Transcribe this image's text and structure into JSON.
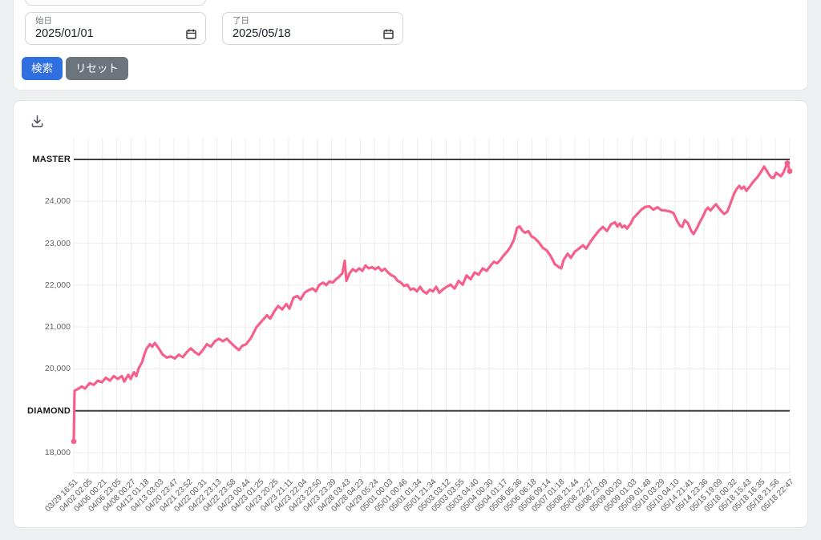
{
  "page": {
    "background": "#eef0f2",
    "card_background": "#ffffff",
    "card_border": "#e4e6ea"
  },
  "filter": {
    "start_date": {
      "label": "始日",
      "value": "2025/01/01"
    },
    "end_date": {
      "label": "了日",
      "value": "2025/05/18"
    },
    "search_label": "検索",
    "reset_label": "リセット",
    "search_color": "#2f6fe0",
    "reset_color": "#6c757d"
  },
  "icons": {
    "download": "tray-arrow-down",
    "calendar": "calendar-outline"
  },
  "chart_data": {
    "type": "line",
    "title": "",
    "line_color": "#f4608a",
    "threshold_color": "#3a3f44",
    "grid_color": "#ececec",
    "legend": "none",
    "y_range": [
      17523,
      25516
    ],
    "y_ticks": [
      {
        "label": "MASTER",
        "value": 25000,
        "emph": true
      },
      {
        "label": "24,000",
        "value": 24000
      },
      {
        "label": "23,000",
        "value": 23000
      },
      {
        "label": "22,000",
        "value": 22000
      },
      {
        "label": "21,000",
        "value": 21000
      },
      {
        "label": "20,000",
        "value": 20000
      },
      {
        "label": "DIAMOND",
        "value": 19000,
        "emph": true
      },
      {
        "label": "18,000",
        "value": 18000
      }
    ],
    "x_ticks": [
      "03/29 16:51",
      "04/02 02:05",
      "04/06 00:21",
      "04/06 23:05",
      "04/08 00:27",
      "04/12 01:18",
      "04/13 03:03",
      "04/20 23:47",
      "04/21 23:52",
      "04/22 00:31",
      "04/22 23:13",
      "04/22 23:58",
      "04/23 00:44",
      "04/23 01:25",
      "04/23 20:25",
      "04/23 21:11",
      "04/23 22:04",
      "04/23 22:50",
      "04/23 23:39",
      "04/28 03:43",
      "04/28 04:23",
      "04/29 05:24",
      "05/01 00:03",
      "05/01 00:46",
      "05/01 01:34",
      "05/01 21:34",
      "05/03 03:12",
      "05/03 03:55",
      "05/03 04:40",
      "05/04 00:30",
      "05/04 01:17",
      "05/06 05:36",
      "05/06 06:18",
      "05/06 09:14",
      "05/07 01:18",
      "05/08 21:44",
      "05/08 22:27",
      "05/08 23:09",
      "05/09 00:20",
      "05/09 01:03",
      "05/09 01:48",
      "05/10 03:29",
      "05/10 04:10",
      "05/14 21:41",
      "05/14 23:36",
      "05/15 19:09",
      "05/18 00:32",
      "05/18 15:43",
      "05/18 16:35",
      "05/18 21:56",
      "05/18 22:47"
    ],
    "points": [
      [
        0,
        18270
      ],
      [
        1,
        19480
      ],
      [
        5,
        19520
      ],
      [
        10,
        19580
      ],
      [
        14,
        19530
      ],
      [
        20,
        19660
      ],
      [
        25,
        19620
      ],
      [
        30,
        19720
      ],
      [
        35,
        19680
      ],
      [
        40,
        19790
      ],
      [
        45,
        19720
      ],
      [
        50,
        19830
      ],
      [
        55,
        19760
      ],
      [
        60,
        19830
      ],
      [
        63,
        19700
      ],
      [
        68,
        19860
      ],
      [
        71,
        19760
      ],
      [
        75,
        19920
      ],
      [
        78,
        19830
      ],
      [
        81,
        20020
      ],
      [
        85,
        20150
      ],
      [
        88,
        20340
      ],
      [
        91,
        20490
      ],
      [
        95,
        20590
      ],
      [
        98,
        20530
      ],
      [
        101,
        20620
      ],
      [
        106,
        20490
      ],
      [
        111,
        20340
      ],
      [
        116,
        20270
      ],
      [
        121,
        20300
      ],
      [
        126,
        20250
      ],
      [
        131,
        20340
      ],
      [
        136,
        20280
      ],
      [
        141,
        20400
      ],
      [
        146,
        20490
      ],
      [
        151,
        20400
      ],
      [
        156,
        20340
      ],
      [
        161,
        20450
      ],
      [
        166,
        20590
      ],
      [
        171,
        20530
      ],
      [
        176,
        20660
      ],
      [
        181,
        20720
      ],
      [
        186,
        20660
      ],
      [
        191,
        20720
      ],
      [
        196,
        20620
      ],
      [
        201,
        20530
      ],
      [
        206,
        20450
      ],
      [
        210,
        20550
      ],
      [
        215,
        20590
      ],
      [
        221,
        20740
      ],
      [
        228,
        21000
      ],
      [
        235,
        21150
      ],
      [
        241,
        21280
      ],
      [
        245,
        21200
      ],
      [
        251,
        21400
      ],
      [
        255,
        21500
      ],
      [
        260,
        21420
      ],
      [
        265,
        21550
      ],
      [
        269,
        21440
      ],
      [
        274,
        21700
      ],
      [
        279,
        21740
      ],
      [
        283,
        21660
      ],
      [
        288,
        21820
      ],
      [
        293,
        21880
      ],
      [
        298,
        21920
      ],
      [
        302,
        21850
      ],
      [
        306,
        22000
      ],
      [
        311,
        22060
      ],
      [
        315,
        22000
      ],
      [
        319,
        22090
      ],
      [
        323,
        22060
      ],
      [
        327,
        22140
      ],
      [
        331,
        22200
      ],
      [
        335,
        22280
      ],
      [
        338,
        22580
      ],
      [
        340,
        22100
      ],
      [
        344,
        22280
      ],
      [
        348,
        22380
      ],
      [
        352,
        22330
      ],
      [
        356,
        22400
      ],
      [
        360,
        22340
      ],
      [
        364,
        22470
      ],
      [
        368,
        22400
      ],
      [
        372,
        22430
      ],
      [
        376,
        22380
      ],
      [
        380,
        22430
      ],
      [
        384,
        22340
      ],
      [
        388,
        22390
      ],
      [
        392,
        22300
      ],
      [
        396,
        22240
      ],
      [
        400,
        22200
      ],
      [
        404,
        22100
      ],
      [
        408,
        22060
      ],
      [
        412,
        21980
      ],
      [
        416,
        22010
      ],
      [
        420,
        21890
      ],
      [
        424,
        21920
      ],
      [
        428,
        21850
      ],
      [
        432,
        21960
      ],
      [
        436,
        21850
      ],
      [
        440,
        21800
      ],
      [
        444,
        21890
      ],
      [
        448,
        21850
      ],
      [
        452,
        21960
      ],
      [
        456,
        21820
      ],
      [
        460,
        21890
      ],
      [
        465,
        21960
      ],
      [
        470,
        22010
      ],
      [
        475,
        21920
      ],
      [
        480,
        22100
      ],
      [
        485,
        22010
      ],
      [
        490,
        22230
      ],
      [
        495,
        22140
      ],
      [
        500,
        22300
      ],
      [
        505,
        22250
      ],
      [
        510,
        22400
      ],
      [
        515,
        22340
      ],
      [
        520,
        22470
      ],
      [
        524,
        22560
      ],
      [
        528,
        22520
      ],
      [
        532,
        22600
      ],
      [
        535,
        22680
      ],
      [
        540,
        22790
      ],
      [
        544,
        22890
      ],
      [
        549,
        23080
      ],
      [
        553,
        23370
      ],
      [
        556,
        23400
      ],
      [
        560,
        23290
      ],
      [
        563,
        23250
      ],
      [
        567,
        23290
      ],
      [
        571,
        23160
      ],
      [
        575,
        23120
      ],
      [
        580,
        23020
      ],
      [
        585,
        22890
      ],
      [
        590,
        22830
      ],
      [
        595,
        22690
      ],
      [
        600,
        22500
      ],
      [
        605,
        22430
      ],
      [
        608,
        22400
      ],
      [
        611,
        22600
      ],
      [
        616,
        22750
      ],
      [
        620,
        22650
      ],
      [
        625,
        22800
      ],
      [
        630,
        22870
      ],
      [
        635,
        22950
      ],
      [
        639,
        22870
      ],
      [
        645,
        23050
      ],
      [
        650,
        23180
      ],
      [
        655,
        23300
      ],
      [
        660,
        23390
      ],
      [
        665,
        23290
      ],
      [
        670,
        23450
      ],
      [
        675,
        23500
      ],
      [
        678,
        23400
      ],
      [
        681,
        23470
      ],
      [
        684,
        23380
      ],
      [
        687,
        23420
      ],
      [
        690,
        23350
      ],
      [
        695,
        23480
      ],
      [
        698,
        23600
      ],
      [
        703,
        23700
      ],
      [
        708,
        23800
      ],
      [
        713,
        23870
      ],
      [
        718,
        23880
      ],
      [
        723,
        23800
      ],
      [
        728,
        23860
      ],
      [
        733,
        23790
      ],
      [
        738,
        23780
      ],
      [
        743,
        23760
      ],
      [
        748,
        23720
      ],
      [
        753,
        23510
      ],
      [
        756,
        23420
      ],
      [
        759,
        23390
      ],
      [
        762,
        23550
      ],
      [
        766,
        23480
      ],
      [
        770,
        23300
      ],
      [
        773,
        23220
      ],
      [
        777,
        23350
      ],
      [
        781,
        23510
      ],
      [
        785,
        23650
      ],
      [
        788,
        23780
      ],
      [
        791,
        23850
      ],
      [
        794,
        23780
      ],
      [
        798,
        23870
      ],
      [
        801,
        23930
      ],
      [
        805,
        23830
      ],
      [
        808,
        23760
      ],
      [
        811,
        23700
      ],
      [
        815,
        23750
      ],
      [
        818,
        23890
      ],
      [
        821,
        24050
      ],
      [
        824,
        24200
      ],
      [
        827,
        24300
      ],
      [
        830,
        24370
      ],
      [
        833,
        24300
      ],
      [
        836,
        24350
      ],
      [
        839,
        24250
      ],
      [
        843,
        24350
      ],
      [
        846,
        24430
      ],
      [
        849,
        24500
      ],
      [
        852,
        24560
      ],
      [
        855,
        24640
      ],
      [
        858,
        24730
      ],
      [
        861,
        24830
      ],
      [
        864,
        24740
      ],
      [
        867,
        24640
      ],
      [
        870,
        24570
      ],
      [
        873,
        24560
      ],
      [
        876,
        24680
      ],
      [
        879,
        24640
      ],
      [
        882,
        24600
      ],
      [
        885,
        24680
      ],
      [
        888,
        24820
      ],
      [
        890,
        24910
      ],
      [
        892,
        24800
      ],
      [
        893,
        24720
      ]
    ],
    "marker_points": [
      [
        0,
        18270
      ],
      [
        890,
        24910
      ],
      [
        893,
        24720
      ]
    ]
  }
}
